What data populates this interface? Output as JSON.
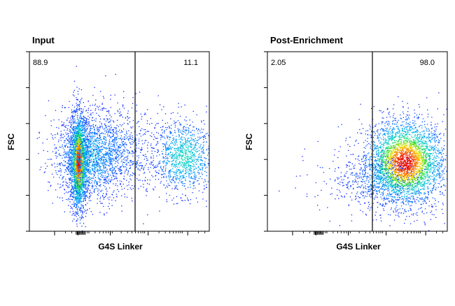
{
  "chart_data": [
    {
      "type": "scatter",
      "title": "Input",
      "xlabel": "G4S Linker",
      "ylabel": "FSC",
      "x_scale": "log",
      "tick_labels_shown": false,
      "gates": [
        {
          "label": "88.9",
          "region": "left"
        },
        {
          "label": "11.1",
          "region": "right"
        }
      ],
      "populations": [
        {
          "name": "negative",
          "fraction": 0.889
        },
        {
          "name": "positive",
          "fraction": 0.111
        }
      ],
      "color_scale": "density-rainbow"
    },
    {
      "type": "scatter",
      "title": "Post-Enrichment",
      "xlabel": "G4S Linker",
      "ylabel": "FSC",
      "x_scale": "log",
      "tick_labels_shown": false,
      "gates": [
        {
          "label": "2.05",
          "region": "left"
        },
        {
          "label": "98.0",
          "region": "right"
        }
      ],
      "populations": [
        {
          "name": "negative",
          "fraction": 0.0205
        },
        {
          "name": "positive",
          "fraction": 0.98
        }
      ],
      "color_scale": "density-rainbow"
    }
  ],
  "colors": {
    "low_density": "#0000ff",
    "mid_density": "#00c8ff",
    "high_density": "#ffe000",
    "peak_density": "#ff0000",
    "axis": "#000000"
  }
}
